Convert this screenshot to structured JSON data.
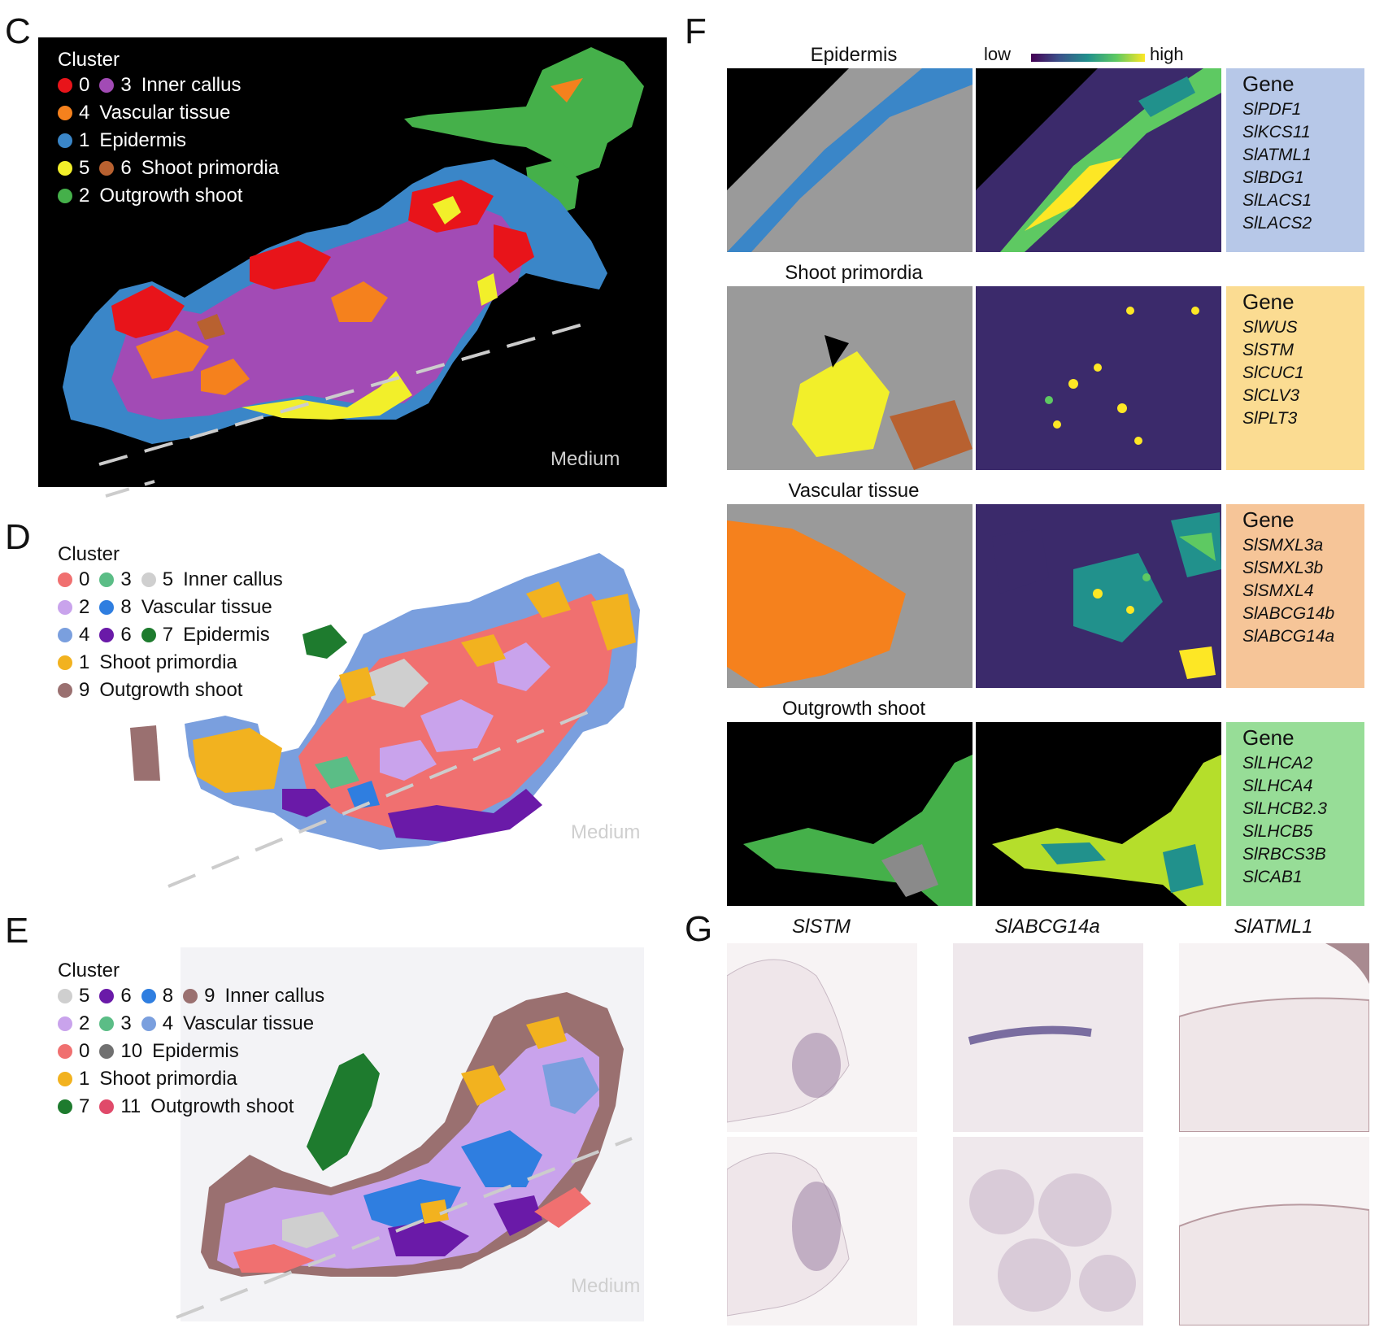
{
  "panels": {
    "C": {
      "letter": "C",
      "legend_title": "Cluster",
      "rows": [
        {
          "items": [
            {
              "color": "#e8141a",
              "num": "0"
            },
            {
              "color": "#a24bb5",
              "num": "3"
            }
          ],
          "label": "Inner callus"
        },
        {
          "items": [
            {
              "color": "#f5811d",
              "num": "4"
            }
          ],
          "label": "Vascular tissue"
        },
        {
          "items": [
            {
              "color": "#3a86c8",
              "num": "1"
            }
          ],
          "label": "Epidermis"
        },
        {
          "items": [
            {
              "color": "#f2ef2a",
              "num": "5"
            },
            {
              "color": "#b86130",
              "num": "6"
            }
          ],
          "label": "Shoot primordia"
        },
        {
          "items": [
            {
              "color": "#45b04a",
              "num": "2"
            }
          ],
          "label": "Outgrowth shoot"
        }
      ],
      "medium": "Medium"
    },
    "D": {
      "letter": "D",
      "legend_title": "Cluster",
      "rows": [
        {
          "items": [
            {
              "color": "#f07070",
              "num": "0"
            },
            {
              "color": "#5bbd86",
              "num": "3"
            },
            {
              "color": "#cfcfcf",
              "num": "5"
            }
          ],
          "label": "Inner callus"
        },
        {
          "items": [
            {
              "color": "#c9a3ec",
              "num": "2"
            },
            {
              "color": "#2f7ee0",
              "num": "8"
            }
          ],
          "label": "Vascular tissue"
        },
        {
          "items": [
            {
              "color": "#7a9fde",
              "num": "4"
            },
            {
              "color": "#6a1aa8",
              "num": "6"
            },
            {
              "color": "#1e7b2e",
              "num": "7"
            }
          ],
          "label": "Epidermis"
        },
        {
          "items": [
            {
              "color": "#f2b21f",
              "num": "1"
            }
          ],
          "label": "Shoot primordia"
        },
        {
          "items": [
            {
              "color": "#9a7070",
              "num": "9"
            }
          ],
          "label": "Outgrowth shoot"
        }
      ],
      "medium": "Medium"
    },
    "E": {
      "letter": "E",
      "legend_title": "Cluster",
      "rows": [
        {
          "items": [
            {
              "color": "#cfcfcf",
              "num": "5"
            },
            {
              "color": "#6a1aa8",
              "num": "6"
            },
            {
              "color": "#2f7ee0",
              "num": "8"
            },
            {
              "color": "#9a7070",
              "num": "9"
            }
          ],
          "label": "Inner callus"
        },
        {
          "items": [
            {
              "color": "#c9a3ec",
              "num": "2"
            },
            {
              "color": "#5bbd86",
              "num": "3"
            },
            {
              "color": "#7a9fde",
              "num": "4"
            }
          ],
          "label": "Vascular tissue"
        },
        {
          "items": [
            {
              "color": "#f07070",
              "num": "0"
            },
            {
              "color": "#707070",
              "num": "10"
            }
          ],
          "label": "Epidermis"
        },
        {
          "items": [
            {
              "color": "#f2b21f",
              "num": "1"
            }
          ],
          "label": "Shoot primordia"
        },
        {
          "items": [
            {
              "color": "#1e7b2e",
              "num": "7"
            },
            {
              "color": "#e04a6a",
              "num": "11"
            }
          ],
          "label": "Outgrowth shoot"
        }
      ],
      "medium": "Medium"
    },
    "F": {
      "letter": "F",
      "scale_low": "low",
      "scale_high": "high",
      "gene_header": "Gene",
      "tissues": [
        {
          "title": "Epidermis",
          "box_color": "#b7c8e8",
          "cluster_color": "#3a86c8",
          "genes": [
            "SlPDF1",
            "SlKCS11",
            "SlATML1",
            "SlBDG1",
            "SlLACS1",
            "SlLACS2"
          ]
        },
        {
          "title": "Shoot primordia",
          "box_color": "#fbdc92",
          "cluster_color": "#f2ef2a",
          "genes": [
            "SlWUS",
            "SlSTM",
            "SlCUC1",
            "SlCLV3",
            "SlPLT3"
          ]
        },
        {
          "title": "Vascular tissue",
          "box_color": "#f6c598",
          "cluster_color": "#f5811d",
          "genes": [
            "SlSMXL3a",
            "SlSMXL3b",
            "SlSMXL4",
            "SlABCG14b",
            "SlABCG14a"
          ]
        },
        {
          "title": "Outgrowth shoot",
          "box_color": "#97dd97",
          "cluster_color": "#45b04a",
          "genes": [
            "SlLHCA2",
            "SlLHCA4",
            "SlLHCB2.3",
            "SlLHCB5",
            "SlRBCS3B",
            "SlCAB1"
          ]
        }
      ]
    },
    "G": {
      "letter": "G",
      "genes": [
        "SlSTM",
        "SlABCG14a",
        "SlATML1"
      ]
    }
  }
}
